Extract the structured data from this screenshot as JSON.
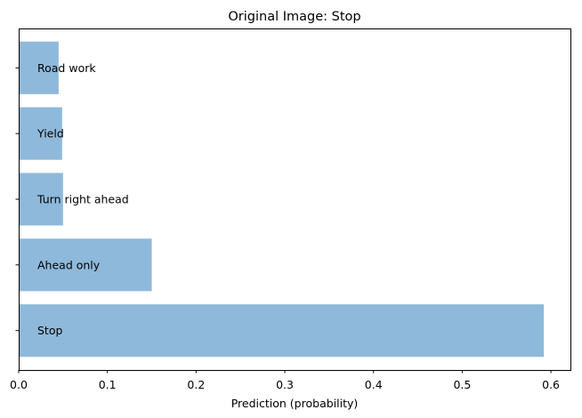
{
  "chart_data": {
    "type": "bar",
    "orientation": "horizontal",
    "title": "Original Image: Stop",
    "xlabel": "Prediction (probability)",
    "ylabel": "",
    "categories": [
      "Stop",
      "Ahead only",
      "Turn right ahead",
      "Yield",
      "Road work"
    ],
    "values": [
      0.592,
      0.15,
      0.05,
      0.049,
      0.045
    ],
    "xlim": [
      0,
      0.622
    ],
    "xticks": [
      0.0,
      0.1,
      0.2,
      0.3,
      0.4,
      0.5,
      0.6
    ],
    "xtick_labels": [
      "0.0",
      "0.1",
      "0.2",
      "0.3",
      "0.4",
      "0.5",
      "0.6"
    ],
    "bar_color": "#8fb9da",
    "grid": false,
    "labels_inside_bars": true
  }
}
